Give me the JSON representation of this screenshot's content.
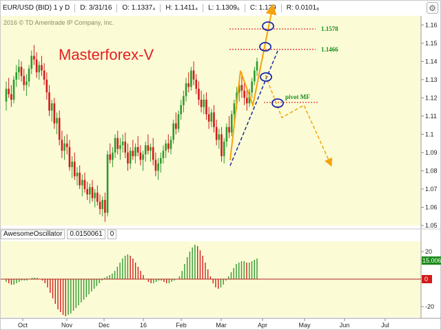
{
  "info_bar": {
    "symbol": "EUR/USD (BID) 1 y D",
    "date": "D: 3/31/16",
    "open": "O: 1.1337₄",
    "high": "H: 1.1411₄",
    "low": "L: 1.1309₆",
    "close": "C: 1.139",
    "range": "R: 0.0101₈"
  },
  "copyright": "2016 © TD Ameritrade IP Company, Inc.",
  "watermark": "Masterforex-V",
  "colors": {
    "price_panel_bg": "#fbfbd6",
    "candle_up": "#2e9a2e",
    "candle_down": "#d21b1b",
    "trend_orange": "#f5a30c",
    "forecast_orange": "#f5a30c",
    "trendline_blue": "#1c26a8",
    "level_red": "#e03030",
    "level_label_green": "#1a8a1a",
    "circle": "#1c26a8",
    "watermark_red": "#e22020"
  },
  "oscillator": {
    "name": "AwesomeOscillator",
    "value": "0.0150061",
    "zero_label": "0"
  },
  "chart_data": {
    "type": "candlestick",
    "x_axis_labels": [
      "Oct",
      "Nov",
      "Dec",
      "16",
      "Feb",
      "Mar",
      "Apr",
      "May",
      "Jun",
      "Jul"
    ],
    "price_axis": {
      "ticks": [
        "1.16",
        "1.15",
        "1.14",
        "1.13",
        "1.12",
        "1.11",
        "1.1",
        "1.09",
        "1.08",
        "1.07",
        "1.06",
        "1.05"
      ],
      "range": [
        1.05,
        1.165
      ],
      "grid": false
    },
    "candles": [
      [
        1.118,
        1.129,
        1.113,
        1.125
      ],
      [
        1.125,
        1.131,
        1.12,
        1.122
      ],
      [
        1.122,
        1.127,
        1.115,
        1.119
      ],
      [
        1.119,
        1.132,
        1.117,
        1.13
      ],
      [
        1.13,
        1.138,
        1.126,
        1.134
      ],
      [
        1.134,
        1.141,
        1.13,
        1.137
      ],
      [
        1.137,
        1.14,
        1.129,
        1.132
      ],
      [
        1.132,
        1.136,
        1.124,
        1.127
      ],
      [
        1.127,
        1.133,
        1.121,
        1.129
      ],
      [
        1.129,
        1.138,
        1.126,
        1.136
      ],
      [
        1.136,
        1.146,
        1.133,
        1.143
      ],
      [
        1.143,
        1.149,
        1.138,
        1.141
      ],
      [
        1.141,
        1.145,
        1.131,
        1.134
      ],
      [
        1.134,
        1.14,
        1.13,
        1.138
      ],
      [
        1.138,
        1.143,
        1.132,
        1.135
      ],
      [
        1.135,
        1.139,
        1.127,
        1.13
      ],
      [
        1.13,
        1.134,
        1.119,
        1.123
      ],
      [
        1.123,
        1.127,
        1.11,
        1.113
      ],
      [
        1.113,
        1.119,
        1.107,
        1.117
      ],
      [
        1.117,
        1.12,
        1.103,
        1.106
      ],
      [
        1.106,
        1.112,
        1.1,
        1.109
      ],
      [
        1.109,
        1.113,
        1.094,
        1.097
      ],
      [
        1.097,
        1.102,
        1.087,
        1.091
      ],
      [
        1.091,
        1.099,
        1.086,
        1.095
      ],
      [
        1.095,
        1.1,
        1.089,
        1.093
      ],
      [
        1.093,
        1.097,
        1.08,
        1.082
      ],
      [
        1.082,
        1.088,
        1.076,
        1.085
      ],
      [
        1.085,
        1.09,
        1.075,
        1.077
      ],
      [
        1.077,
        1.082,
        1.072,
        1.079
      ],
      [
        1.079,
        1.083,
        1.07,
        1.072
      ],
      [
        1.072,
        1.078,
        1.066,
        1.075
      ],
      [
        1.075,
        1.079,
        1.068,
        1.07
      ],
      [
        1.07,
        1.074,
        1.064,
        1.067
      ],
      [
        1.067,
        1.073,
        1.062,
        1.071
      ],
      [
        1.071,
        1.075,
        1.063,
        1.065
      ],
      [
        1.065,
        1.07,
        1.06,
        1.068
      ],
      [
        1.068,
        1.072,
        1.061,
        1.063
      ],
      [
        1.063,
        1.067,
        1.056,
        1.059
      ],
      [
        1.059,
        1.066,
        1.055,
        1.064
      ],
      [
        1.064,
        1.068,
        1.052,
        1.057
      ],
      [
        1.057,
        1.091,
        1.055,
        1.089
      ],
      [
        1.089,
        1.095,
        1.084,
        1.086
      ],
      [
        1.086,
        1.093,
        1.082,
        1.09
      ],
      [
        1.09,
        1.1,
        1.087,
        1.098
      ],
      [
        1.098,
        1.102,
        1.089,
        1.092
      ],
      [
        1.092,
        1.098,
        1.086,
        1.094
      ],
      [
        1.094,
        1.1,
        1.09,
        1.096
      ],
      [
        1.096,
        1.101,
        1.087,
        1.09
      ],
      [
        1.09,
        1.095,
        1.08,
        1.084
      ],
      [
        1.084,
        1.093,
        1.081,
        1.091
      ],
      [
        1.091,
        1.097,
        1.086,
        1.088
      ],
      [
        1.088,
        1.095,
        1.084,
        1.093
      ],
      [
        1.093,
        1.099,
        1.088,
        1.09
      ],
      [
        1.09,
        1.094,
        1.083,
        1.086
      ],
      [
        1.086,
        1.091,
        1.08,
        1.089
      ],
      [
        1.089,
        1.096,
        1.085,
        1.094
      ],
      [
        1.094,
        1.1,
        1.089,
        1.091
      ],
      [
        1.091,
        1.095,
        1.085,
        1.093
      ],
      [
        1.093,
        1.098,
        1.083,
        1.086
      ],
      [
        1.086,
        1.09,
        1.077,
        1.08
      ],
      [
        1.08,
        1.087,
        1.075,
        1.084
      ],
      [
        1.084,
        1.09,
        1.079,
        1.087
      ],
      [
        1.087,
        1.094,
        1.084,
        1.091
      ],
      [
        1.091,
        1.097,
        1.087,
        1.095
      ],
      [
        1.095,
        1.1,
        1.09,
        1.092
      ],
      [
        1.092,
        1.099,
        1.089,
        1.097
      ],
      [
        1.097,
        1.108,
        1.095,
        1.106
      ],
      [
        1.106,
        1.112,
        1.1,
        1.103
      ],
      [
        1.103,
        1.113,
        1.101,
        1.111
      ],
      [
        1.111,
        1.119,
        1.108,
        1.116
      ],
      [
        1.116,
        1.124,
        1.112,
        1.121
      ],
      [
        1.121,
        1.131,
        1.118,
        1.128
      ],
      [
        1.128,
        1.134,
        1.123,
        1.126
      ],
      [
        1.126,
        1.137,
        1.124,
        1.135
      ],
      [
        1.135,
        1.14,
        1.127,
        1.13
      ],
      [
        1.13,
        1.133,
        1.122,
        1.125
      ],
      [
        1.125,
        1.129,
        1.116,
        1.119
      ],
      [
        1.119,
        1.124,
        1.112,
        1.115
      ],
      [
        1.115,
        1.122,
        1.111,
        1.119
      ],
      [
        1.119,
        1.123,
        1.108,
        1.111
      ],
      [
        1.111,
        1.115,
        1.103,
        1.107
      ],
      [
        1.107,
        1.114,
        1.104,
        1.112
      ],
      [
        1.112,
        1.116,
        1.101,
        1.104
      ],
      [
        1.104,
        1.108,
        1.094,
        1.097
      ],
      [
        1.097,
        1.103,
        1.092,
        1.1
      ],
      [
        1.1,
        1.104,
        1.085,
        1.088
      ],
      [
        1.088,
        1.098,
        1.084,
        1.096
      ],
      [
        1.096,
        1.106,
        1.093,
        1.104
      ],
      [
        1.104,
        1.11,
        1.098,
        1.101
      ],
      [
        1.101,
        1.113,
        1.099,
        1.111
      ],
      [
        1.111,
        1.119,
        1.107,
        1.117
      ],
      [
        1.117,
        1.126,
        1.114,
        1.123
      ],
      [
        1.123,
        1.13,
        1.118,
        1.127
      ],
      [
        1.127,
        1.134,
        1.12,
        1.124
      ],
      [
        1.124,
        1.129,
        1.116,
        1.12
      ],
      [
        1.12,
        1.124,
        1.113,
        1.117
      ],
      [
        1.117,
        1.125,
        1.115,
        1.123
      ],
      [
        1.123,
        1.131,
        1.12,
        1.129
      ],
      [
        1.129,
        1.137,
        1.127,
        1.135
      ],
      [
        1.135,
        1.142,
        1.132,
        1.14
      ]
    ],
    "levels": [
      {
        "label": "1.1578",
        "value": 1.1578
      },
      {
        "label": "1.1466",
        "value": 1.1466
      },
      {
        "label": "pivot MF",
        "value": 1.1175
      }
    ],
    "oscillator": {
      "axis_ticks": [
        "20",
        "0",
        "-20"
      ],
      "badge_values": [
        "15.006",
        "0"
      ],
      "values": [
        -2,
        -3,
        -4,
        -4,
        -3,
        -2,
        -1,
        -1,
        -1,
        0,
        1,
        1,
        1,
        0,
        -1,
        -3,
        -6,
        -10,
        -14,
        -18,
        -22,
        -24,
        -26,
        -27,
        -26,
        -25,
        -23,
        -21,
        -19,
        -17,
        -15,
        -13,
        -11,
        -9,
        -7,
        -5,
        -3,
        -1,
        1,
        2,
        3,
        4,
        6,
        9,
        12,
        15,
        17,
        18,
        17,
        15,
        12,
        9,
        6,
        3,
        0,
        -2,
        -3,
        -3,
        -2,
        -1,
        -1,
        -2,
        -3,
        -3,
        -2,
        -1,
        0,
        2,
        6,
        11,
        16,
        20,
        23,
        25,
        24,
        21,
        17,
        12,
        7,
        2,
        -3,
        -6,
        -7,
        -6,
        -4,
        -1,
        2,
        5,
        8,
        11,
        12,
        13,
        13,
        12,
        12,
        13,
        14,
        15
      ]
    }
  }
}
